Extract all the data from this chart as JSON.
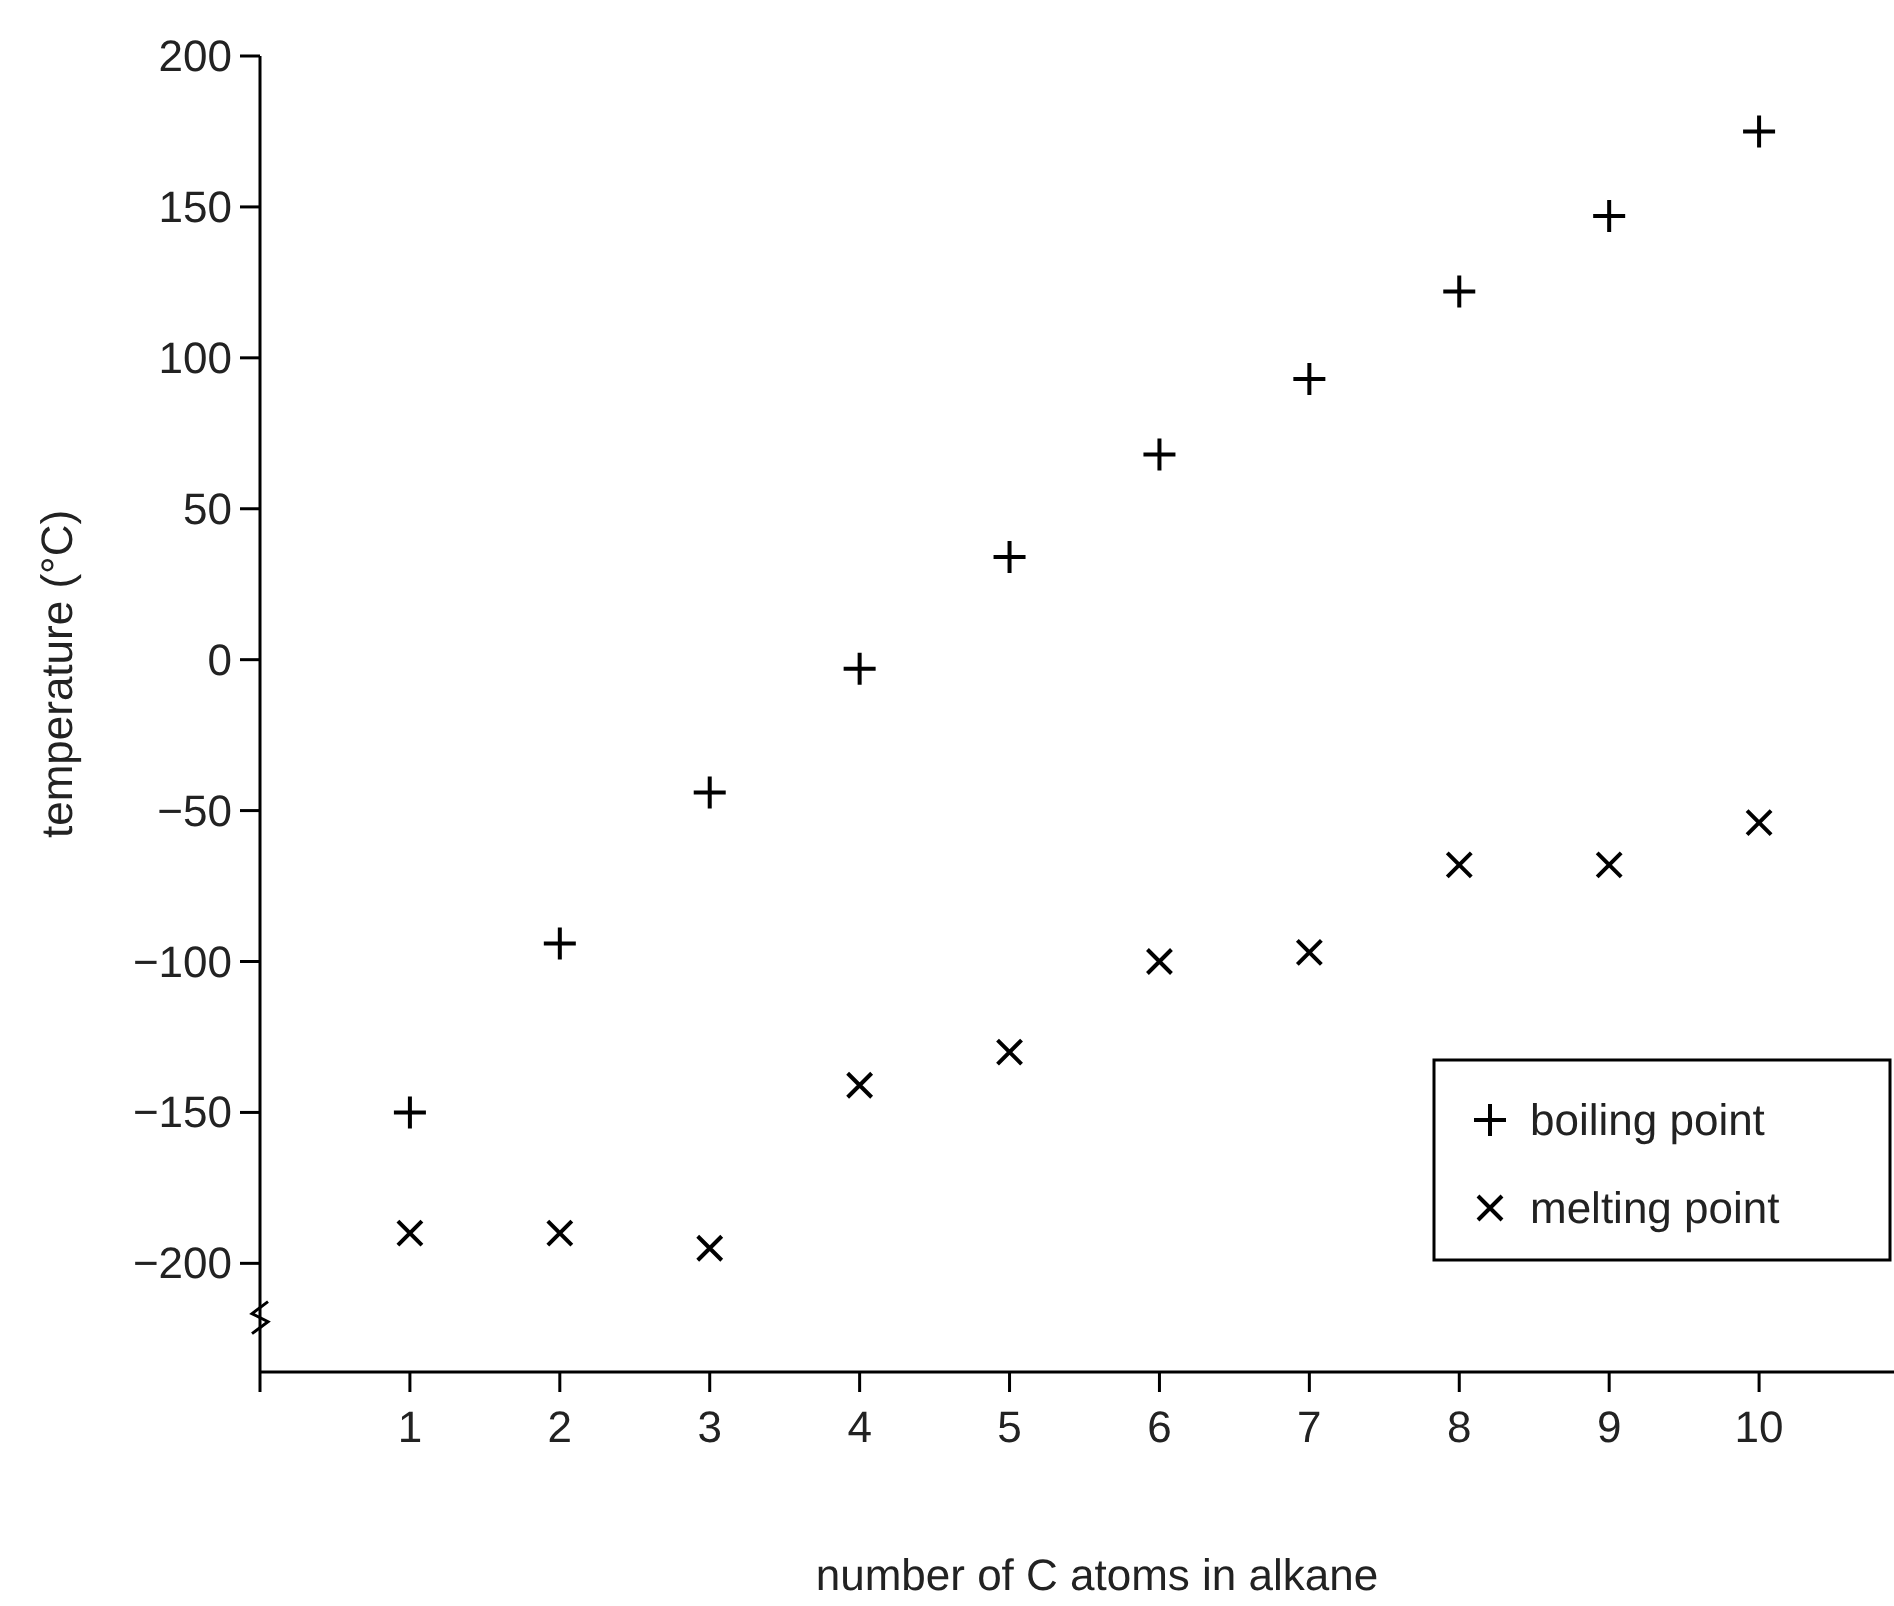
{
  "chart_data": {
    "type": "scatter",
    "xlabel": "number of C atoms in alkane",
    "ylabel": "temperature (°C)",
    "x": [
      1,
      2,
      3,
      4,
      5,
      6,
      7,
      8,
      9,
      10
    ],
    "series": [
      {
        "name": "boiling point",
        "color": "#000000",
        "marker": "plus",
        "values": [
          -150,
          -94,
          -44,
          -3,
          34,
          68,
          93,
          122,
          147,
          175
        ]
      },
      {
        "name": "melting point",
        "color": "#000000",
        "marker": "cross",
        "values": [
          -190,
          -190,
          -195,
          -141,
          -130,
          -100,
          -97,
          -68,
          -68,
          -54
        ]
      }
    ],
    "xlim": [
      0,
      10.9
    ],
    "xticks": [
      1,
      2,
      3,
      4,
      5,
      6,
      7,
      8,
      9,
      10
    ],
    "ylim": [
      -236,
      200
    ],
    "yticks": [
      -200,
      -150,
      -100,
      -50,
      0,
      50,
      100,
      150,
      200
    ],
    "grid": false,
    "legend": "bottom right"
  }
}
